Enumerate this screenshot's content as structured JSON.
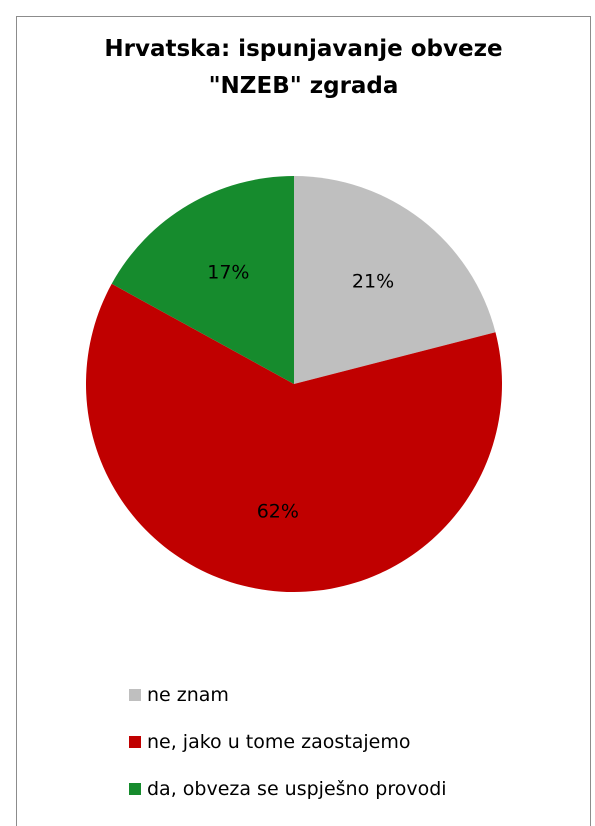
{
  "chart_data": {
    "type": "pie",
    "title_lines": [
      "Hrvatska: ispunjavanje obveze",
      "\"NZEB\" zgrada"
    ],
    "slices": [
      {
        "label": "ne znam",
        "value": 21,
        "data_label": "21%",
        "color": "#bfbfbf"
      },
      {
        "label": "ne, jako u tome zaostajemo",
        "value": 62,
        "data_label": "62%",
        "color": "#c00000"
      },
      {
        "label": "da, obveza se uspješno provodi",
        "value": 17,
        "data_label": "17%",
        "color": "#168b2d"
      }
    ],
    "legend_position": "bottom",
    "start_angle": "12 o'clock",
    "direction": "clockwise"
  }
}
